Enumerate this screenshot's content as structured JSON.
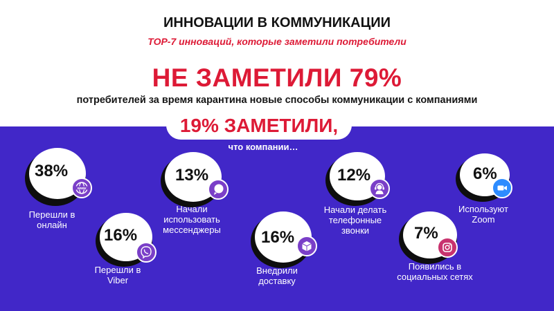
{
  "header": {
    "title": "ИННОВАЦИИ В КОММУНИКАЦИИ",
    "subtitle": "ТОР-7 инноваций, которые заметили потребители",
    "headline": "НЕ ЗАМЕТИЛИ 79%",
    "subheadline": "потребителей за время карантина новые способы коммуникации с компаниями"
  },
  "noticed": {
    "value": "19% ЗАМЕТИЛИ,",
    "caption": "что компании…"
  },
  "colors": {
    "accent_red": "#dd1a36",
    "band_blue": "#4127c8",
    "icon_purple": "#7a3fc8",
    "zoom_blue": "#2d8cff"
  },
  "items": [
    {
      "percent": "38%",
      "label": "Перешли в онлайн",
      "icon": "www-globe-icon"
    },
    {
      "percent": "16%",
      "label": "Перешли в Viber",
      "icon": "viber-icon"
    },
    {
      "percent": "13%",
      "label": "Начали использовать мессенджеры",
      "icon": "chat-bubble-icon"
    },
    {
      "percent": "16%",
      "label": "Внедрили доставку",
      "icon": "delivery-box-icon"
    },
    {
      "percent": "12%",
      "label": "Начали делать телефонные звонки",
      "icon": "headset-operator-icon"
    },
    {
      "percent": "7%",
      "label": "Появились в социальных сетях",
      "icon": "instagram-icon"
    },
    {
      "percent": "6%",
      "label": "Используют Zoom",
      "icon": "zoom-camera-icon"
    }
  ]
}
